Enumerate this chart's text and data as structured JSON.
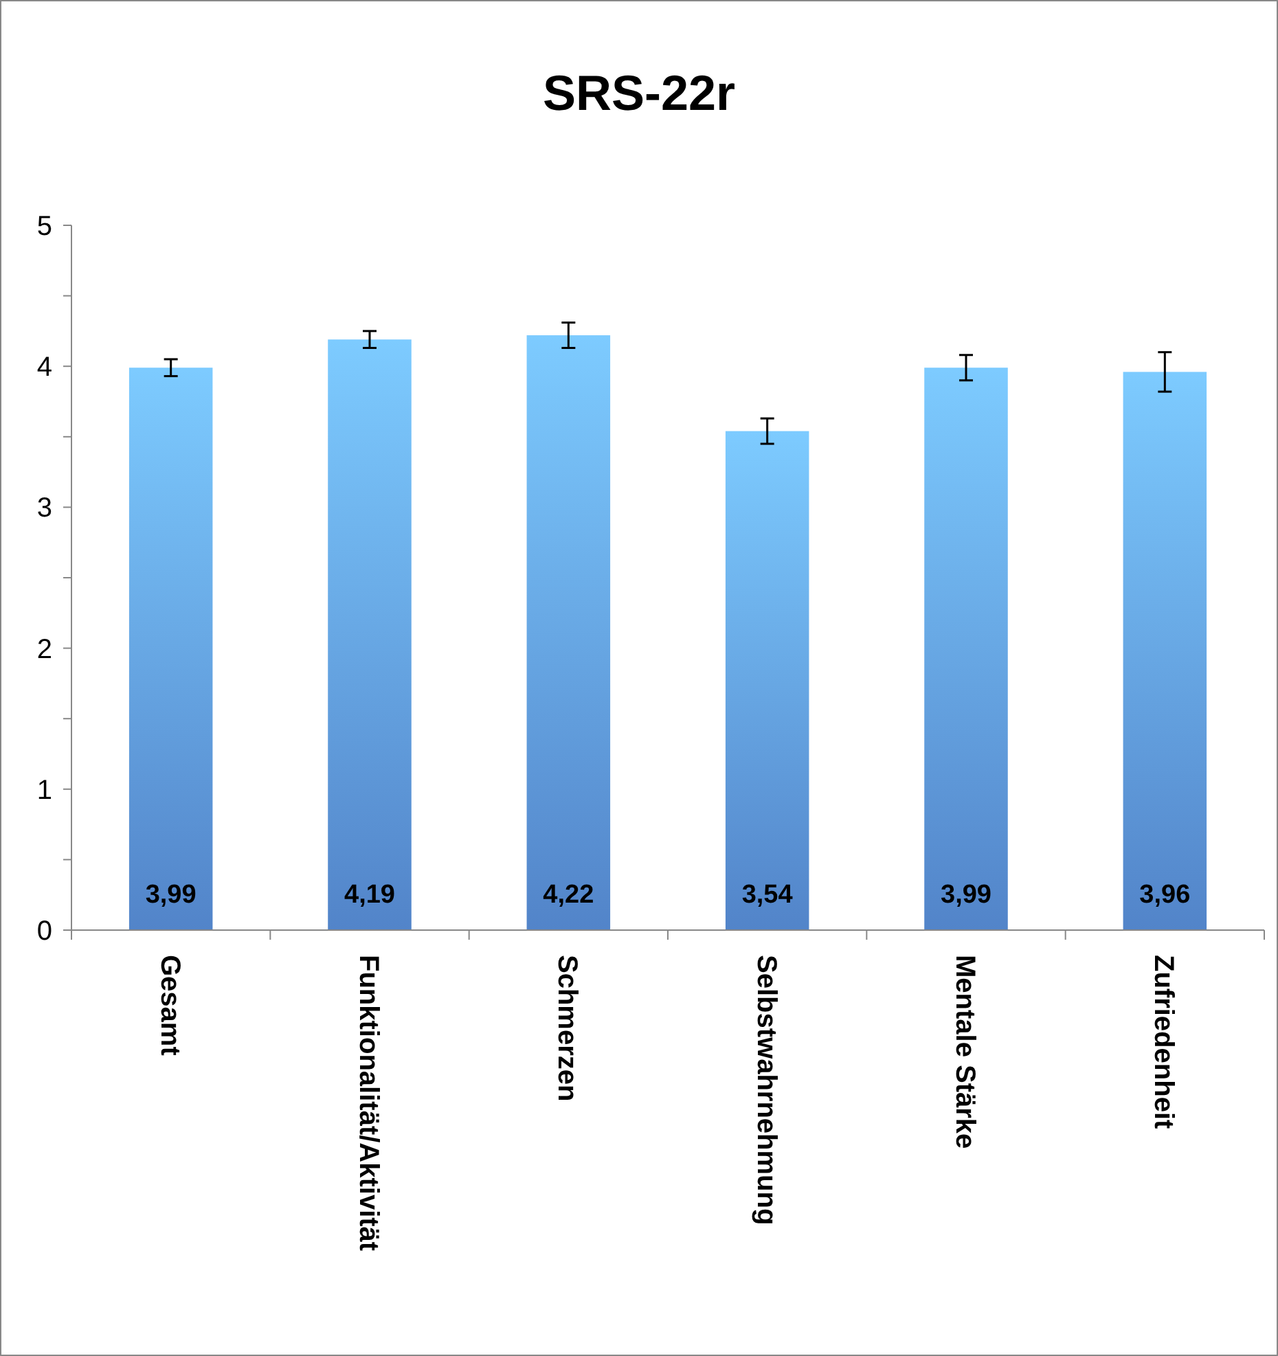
{
  "chart_data": {
    "type": "bar",
    "title": "SRS-22r",
    "categories": [
      "Gesamt",
      "Funktionalität/Aktivität",
      "Schmerzen",
      "Selbstwahrnehmung",
      "Mentale Stärke",
      "Zufriedenheit"
    ],
    "values": [
      3.99,
      4.19,
      4.22,
      3.54,
      3.99,
      3.96
    ],
    "errors": [
      0.06,
      0.06,
      0.09,
      0.09,
      0.09,
      0.14
    ],
    "value_labels": [
      "3,99",
      "4,19",
      "4,22",
      "3,54",
      "3,99",
      "3,96"
    ],
    "color": "#5b93e0",
    "ylim": [
      0,
      5
    ],
    "yticks": [
      0,
      {
        "value": 0.5,
        "label": null
      },
      1,
      {
        "value": 1.5,
        "label": null
      },
      2,
      {
        "value": 2.5,
        "label": null
      },
      3,
      {
        "value": 3.5,
        "label": null
      },
      4,
      {
        "value": 4.5,
        "label": null
      },
      5
    ],
    "grid": false
  }
}
